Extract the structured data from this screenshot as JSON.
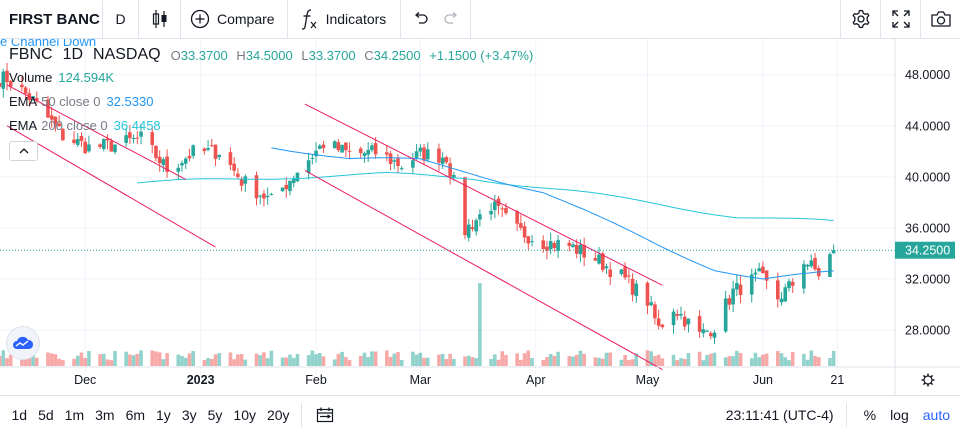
{
  "toolbar": {
    "symbol": "FIRST BANC",
    "interval": "D",
    "compare_label": "Compare",
    "indicators_label": "Indicators"
  },
  "legend": {
    "hidden_title": "e Channel Down",
    "symbol": "FBNC",
    "interval": "1D",
    "exchange": "NASDAQ",
    "ohlc": {
      "o_key": "O",
      "o": "33.3700",
      "h_key": "H",
      "h": "34.5000",
      "l_key": "L",
      "l": "33.3700",
      "c_key": "C",
      "c": "34.2500",
      "change": "+1.1500 (+3.47%)"
    },
    "volume": {
      "label": "Volume",
      "value": "124.594K"
    },
    "ema50": {
      "label": "EMA",
      "params": "50 close 0",
      "value": "32.5330"
    },
    "ema200": {
      "label": "EMA",
      "params": "200 close 0",
      "value": "36.4458"
    }
  },
  "bottom": {
    "ranges": [
      "1d",
      "5d",
      "1m",
      "3m",
      "6m",
      "1y",
      "3y",
      "5y",
      "10y",
      "20y"
    ],
    "clock": "23:11:41 (UTC-4)",
    "percent": "%",
    "log": "log",
    "auto": "auto"
  },
  "colors": {
    "up": "#26a69a",
    "down": "#ef5350",
    "ema50": "#2196f3",
    "ema200": "#26c6da",
    "channel": "#e91e63",
    "grid": "#f0f3fa"
  },
  "chart_data": {
    "type": "candlestick",
    "y_axis_labels": [
      "48.0000",
      "44.0000",
      "40.0000",
      "36.0000",
      "32.0000",
      "28.0000"
    ],
    "y_axis_values": [
      48,
      44,
      40,
      36,
      32,
      28
    ],
    "ylim": [
      25.1,
      50.8
    ],
    "last_price_label": "34.2500",
    "last_price": 34.25,
    "x_axis_labels": [
      "Dec",
      "2023",
      "Feb",
      "Mar",
      "Apr",
      "May",
      "Jun",
      "21"
    ],
    "x_axis_dates": [
      "2022-12-01",
      "2023-01-01",
      "2023-02-01",
      "2023-03-01",
      "2023-04-01",
      "2023-05-01",
      "2023-06-01",
      "2023-06-21"
    ],
    "x_range": [
      "2022-11-10",
      "2023-06-26"
    ],
    "grid": true,
    "close_anchors": [
      [
        "2022-11-10",
        47.7
      ],
      [
        "2022-11-17",
        46.0
      ],
      [
        "2022-11-25",
        43.2
      ],
      [
        "2022-12-02",
        42.3
      ],
      [
        "2022-12-09",
        42.5
      ],
      [
        "2022-12-16",
        43.0
      ],
      [
        "2022-12-23",
        40.6
      ],
      [
        "2022-12-30",
        41.9
      ],
      [
        "2023-01-06",
        42.0
      ],
      [
        "2023-01-12",
        39.7
      ],
      [
        "2023-01-20",
        38.1
      ],
      [
        "2023-01-27",
        40.5
      ],
      [
        "2023-02-03",
        42.6
      ],
      [
        "2023-02-10",
        41.8
      ],
      [
        "2023-02-17",
        41.9
      ],
      [
        "2023-02-24",
        40.9
      ],
      [
        "2023-03-01",
        41.8
      ],
      [
        "2023-03-08",
        41.6
      ],
      [
        "2023-03-10",
        39.5
      ],
      [
        "2023-03-13",
        35.8
      ],
      [
        "2023-03-20",
        37.8
      ],
      [
        "2023-03-27",
        35.8
      ],
      [
        "2023-04-03",
        34.9
      ],
      [
        "2023-04-10",
        34.6
      ],
      [
        "2023-04-17",
        33.6
      ],
      [
        "2023-04-24",
        32.2
      ],
      [
        "2023-05-01",
        30.3
      ],
      [
        "2023-05-04",
        28.1
      ],
      [
        "2023-05-08",
        29.8
      ],
      [
        "2023-05-15",
        27.6
      ],
      [
        "2023-05-19",
        28.3
      ],
      [
        "2023-05-24",
        31.0
      ],
      [
        "2023-05-31",
        32.2
      ],
      [
        "2023-06-05",
        30.5
      ],
      [
        "2023-06-09",
        31.6
      ],
      [
        "2023-06-12",
        33.5
      ],
      [
        "2023-06-16",
        32.4
      ],
      [
        "2023-06-20",
        34.25
      ]
    ],
    "ema50_anchors": [
      [
        "2023-01-20",
        42.4
      ],
      [
        "2023-02-10",
        41.4
      ],
      [
        "2023-03-01",
        41.3
      ],
      [
        "2023-03-15",
        40.3
      ],
      [
        "2023-04-03",
        38.8
      ],
      [
        "2023-04-20",
        36.5
      ],
      [
        "2023-05-05",
        34.5
      ],
      [
        "2023-05-19",
        32.8
      ],
      [
        "2023-06-01",
        32.0
      ],
      [
        "2023-06-20",
        32.5
      ]
    ],
    "ema200_anchors": [
      [
        "2022-12-15",
        39.5
      ],
      [
        "2023-01-25",
        40.0
      ],
      [
        "2023-02-20",
        40.2
      ],
      [
        "2023-03-15",
        39.9
      ],
      [
        "2023-04-10",
        38.9
      ],
      [
        "2023-05-05",
        37.8
      ],
      [
        "2023-05-25",
        36.9
      ],
      [
        "2023-06-20",
        36.45
      ]
    ],
    "volume_spike": [
      "2023-03-17",
      1.0
    ]
  }
}
